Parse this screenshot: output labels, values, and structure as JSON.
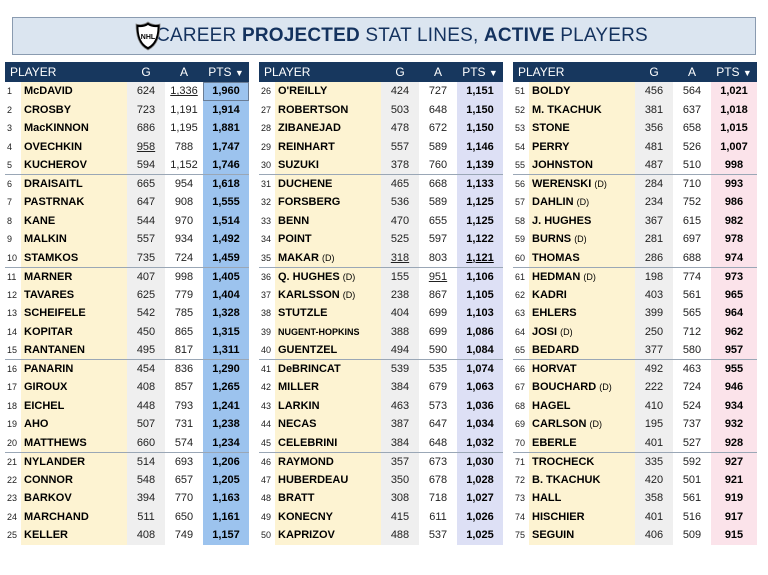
{
  "title": {
    "prefix": "CAREER ",
    "bold1": "PROJECTED",
    "middle": " STAT LINES, ",
    "bold2": "ACTIVE",
    "suffix": " PLAYERS"
  },
  "logo": {
    "icon": "nhl-shield-icon",
    "text": "NHL"
  },
  "headers": {
    "player": "PLAYER",
    "g": "G",
    "a": "A",
    "pts": "PTS",
    "sort_icon": "sort-descending-icon"
  },
  "colors": {
    "header_bg": "#17375e",
    "player_bg": "#fdf3d2",
    "goals_bg": "#efefef",
    "pts_col1": "#9cc3ee",
    "pts_col2": "#dde0f5",
    "pts_col3": "#fbe3ea"
  },
  "chart_data": {
    "type": "table",
    "columns": [
      "Rank",
      "Player",
      "G",
      "A",
      "PTS"
    ],
    "sort": "PTS descending",
    "rows": [
      {
        "rank": "1",
        "player": "McDAVID",
        "g": "624",
        "a": "1,336",
        "pts": "1,960",
        "u_a": true,
        "box_pts": true
      },
      {
        "rank": "2",
        "player": "CROSBY",
        "g": "723",
        "a": "1,191",
        "pts": "1,914"
      },
      {
        "rank": "3",
        "player": "MacKINNON",
        "g": "686",
        "a": "1,195",
        "pts": "1,881"
      },
      {
        "rank": "4",
        "player": "OVECHKIN",
        "g": "958",
        "a": "788",
        "pts": "1,747",
        "u_g": true
      },
      {
        "rank": "5",
        "player": "KUCHEROV",
        "g": "594",
        "a": "1,152",
        "pts": "1,746"
      },
      {
        "rank": "6",
        "player": "DRAISAITL",
        "g": "665",
        "a": "954",
        "pts": "1,618"
      },
      {
        "rank": "7",
        "player": "PASTRNAK",
        "g": "647",
        "a": "908",
        "pts": "1,555"
      },
      {
        "rank": "8",
        "player": "KANE",
        "g": "544",
        "a": "970",
        "pts": "1,514"
      },
      {
        "rank": "9",
        "player": "MALKIN",
        "g": "557",
        "a": "934",
        "pts": "1,492"
      },
      {
        "rank": "10",
        "player": "STAMKOS",
        "g": "735",
        "a": "724",
        "pts": "1,459"
      },
      {
        "rank": "11",
        "player": "MARNER",
        "g": "407",
        "a": "998",
        "pts": "1,405"
      },
      {
        "rank": "12",
        "player": "TAVARES",
        "g": "625",
        "a": "779",
        "pts": "1,404"
      },
      {
        "rank": "13",
        "player": "SCHEIFELE",
        "g": "542",
        "a": "785",
        "pts": "1,328"
      },
      {
        "rank": "14",
        "player": "KOPITAR",
        "g": "450",
        "a": "865",
        "pts": "1,315"
      },
      {
        "rank": "15",
        "player": "RANTANEN",
        "g": "495",
        "a": "817",
        "pts": "1,311"
      },
      {
        "rank": "16",
        "player": "PANARIN",
        "g": "454",
        "a": "836",
        "pts": "1,290"
      },
      {
        "rank": "17",
        "player": "GIROUX",
        "g": "408",
        "a": "857",
        "pts": "1,265"
      },
      {
        "rank": "18",
        "player": "EICHEL",
        "g": "448",
        "a": "793",
        "pts": "1,241"
      },
      {
        "rank": "19",
        "player": "AHO",
        "g": "507",
        "a": "731",
        "pts": "1,238"
      },
      {
        "rank": "20",
        "player": "MATTHEWS",
        "g": "660",
        "a": "574",
        "pts": "1,234"
      },
      {
        "rank": "21",
        "player": "NYLANDER",
        "g": "514",
        "a": "693",
        "pts": "1,206"
      },
      {
        "rank": "22",
        "player": "CONNOR",
        "g": "548",
        "a": "657",
        "pts": "1,205"
      },
      {
        "rank": "23",
        "player": "BARKOV",
        "g": "394",
        "a": "770",
        "pts": "1,163"
      },
      {
        "rank": "24",
        "player": "MARCHAND",
        "g": "511",
        "a": "650",
        "pts": "1,161"
      },
      {
        "rank": "25",
        "player": "KELLER",
        "g": "408",
        "a": "749",
        "pts": "1,157"
      },
      {
        "rank": "26",
        "player": "O'REILLY",
        "g": "424",
        "a": "727",
        "pts": "1,151"
      },
      {
        "rank": "27",
        "player": "ROBERTSON",
        "g": "503",
        "a": "648",
        "pts": "1,150"
      },
      {
        "rank": "28",
        "player": "ZIBANEJAD",
        "g": "478",
        "a": "672",
        "pts": "1,150"
      },
      {
        "rank": "29",
        "player": "REINHART",
        "g": "557",
        "a": "589",
        "pts": "1,146"
      },
      {
        "rank": "30",
        "player": "SUZUKI",
        "g": "378",
        "a": "760",
        "pts": "1,139"
      },
      {
        "rank": "31",
        "player": "DUCHENE",
        "g": "465",
        "a": "668",
        "pts": "1,133"
      },
      {
        "rank": "32",
        "player": "FORSBERG",
        "g": "536",
        "a": "589",
        "pts": "1,125"
      },
      {
        "rank": "33",
        "player": "BENN",
        "g": "470",
        "a": "655",
        "pts": "1,125"
      },
      {
        "rank": "34",
        "player": "POINT",
        "g": "525",
        "a": "597",
        "pts": "1,122"
      },
      {
        "rank": "35",
        "player": "MAKAR",
        "tag": "(D)",
        "g": "318",
        "a": "803",
        "pts": "1,121",
        "u_g": true,
        "u_pts": true
      },
      {
        "rank": "36",
        "player": "Q. HUGHES",
        "tag": "(D)",
        "g": "155",
        "a": "951",
        "pts": "1,106",
        "u_a": true
      },
      {
        "rank": "37",
        "player": "KARLSSON",
        "tag": "(D)",
        "g": "238",
        "a": "867",
        "pts": "1,105"
      },
      {
        "rank": "38",
        "player": "STUTZLE",
        "g": "404",
        "a": "699",
        "pts": "1,103"
      },
      {
        "rank": "39",
        "player": "NUGENT-HOPKINS",
        "g": "388",
        "a": "699",
        "pts": "1,086",
        "small": true
      },
      {
        "rank": "40",
        "player": "GUENTZEL",
        "g": "494",
        "a": "590",
        "pts": "1,084"
      },
      {
        "rank": "41",
        "player": "DeBRINCAT",
        "g": "539",
        "a": "535",
        "pts": "1,074"
      },
      {
        "rank": "42",
        "player": "MILLER",
        "g": "384",
        "a": "679",
        "pts": "1,063"
      },
      {
        "rank": "43",
        "player": "LARKIN",
        "g": "463",
        "a": "573",
        "pts": "1,036"
      },
      {
        "rank": "44",
        "player": "NECAS",
        "g": "387",
        "a": "647",
        "pts": "1,034"
      },
      {
        "rank": "45",
        "player": "CELEBRINI",
        "g": "384",
        "a": "648",
        "pts": "1,032"
      },
      {
        "rank": "46",
        "player": "RAYMOND",
        "g": "357",
        "a": "673",
        "pts": "1,030"
      },
      {
        "rank": "47",
        "player": "HUBERDEAU",
        "g": "350",
        "a": "678",
        "pts": "1,028"
      },
      {
        "rank": "48",
        "player": "BRATT",
        "g": "308",
        "a": "718",
        "pts": "1,027"
      },
      {
        "rank": "49",
        "player": "KONECNY",
        "g": "415",
        "a": "611",
        "pts": "1,026"
      },
      {
        "rank": "50",
        "player": "KAPRIZOV",
        "g": "488",
        "a": "537",
        "pts": "1,025"
      },
      {
        "rank": "51",
        "player": "BOLDY",
        "g": "456",
        "a": "564",
        "pts": "1,021"
      },
      {
        "rank": "52",
        "player": "M. TKACHUK",
        "g": "381",
        "a": "637",
        "pts": "1,018"
      },
      {
        "rank": "53",
        "player": "STONE",
        "g": "356",
        "a": "658",
        "pts": "1,015"
      },
      {
        "rank": "54",
        "player": "PERRY",
        "g": "481",
        "a": "526",
        "pts": "1,007"
      },
      {
        "rank": "55",
        "player": "JOHNSTON",
        "g": "487",
        "a": "510",
        "pts": "998"
      },
      {
        "rank": "56",
        "player": "WERENSKI",
        "tag": "(D)",
        "g": "284",
        "a": "710",
        "pts": "993"
      },
      {
        "rank": "57",
        "player": "DAHLIN",
        "tag": "(D)",
        "g": "234",
        "a": "752",
        "pts": "986"
      },
      {
        "rank": "58",
        "player": "J. HUGHES",
        "g": "367",
        "a": "615",
        "pts": "982"
      },
      {
        "rank": "59",
        "player": "BURNS",
        "tag": "(D)",
        "g": "281",
        "a": "697",
        "pts": "978"
      },
      {
        "rank": "60",
        "player": "THOMAS",
        "g": "286",
        "a": "688",
        "pts": "974"
      },
      {
        "rank": "61",
        "player": "HEDMAN",
        "tag": "(D)",
        "g": "198",
        "a": "774",
        "pts": "973"
      },
      {
        "rank": "62",
        "player": "KADRI",
        "g": "403",
        "a": "561",
        "pts": "965"
      },
      {
        "rank": "63",
        "player": "EHLERS",
        "g": "399",
        "a": "565",
        "pts": "964"
      },
      {
        "rank": "64",
        "player": "JOSI",
        "tag": "(D)",
        "g": "250",
        "a": "712",
        "pts": "962"
      },
      {
        "rank": "65",
        "player": "BEDARD",
        "g": "377",
        "a": "580",
        "pts": "957"
      },
      {
        "rank": "66",
        "player": "HORVAT",
        "g": "492",
        "a": "463",
        "pts": "955"
      },
      {
        "rank": "67",
        "player": "BOUCHARD",
        "tag": "(D)",
        "g": "222",
        "a": "724",
        "pts": "946"
      },
      {
        "rank": "68",
        "player": "HAGEL",
        "g": "410",
        "a": "524",
        "pts": "934"
      },
      {
        "rank": "69",
        "player": "CARLSON",
        "tag": "(D)",
        "g": "195",
        "a": "737",
        "pts": "932"
      },
      {
        "rank": "70",
        "player": "EBERLE",
        "g": "401",
        "a": "527",
        "pts": "928"
      },
      {
        "rank": "71",
        "player": "TROCHECK",
        "g": "335",
        "a": "592",
        "pts": "927"
      },
      {
        "rank": "72",
        "player": "B. TKACHUK",
        "g": "420",
        "a": "501",
        "pts": "921"
      },
      {
        "rank": "73",
        "player": "HALL",
        "g": "358",
        "a": "561",
        "pts": "919"
      },
      {
        "rank": "74",
        "player": "HISCHIER",
        "g": "401",
        "a": "516",
        "pts": "917"
      },
      {
        "rank": "75",
        "player": "SEGUIN",
        "g": "406",
        "a": "509",
        "pts": "915"
      }
    ]
  }
}
